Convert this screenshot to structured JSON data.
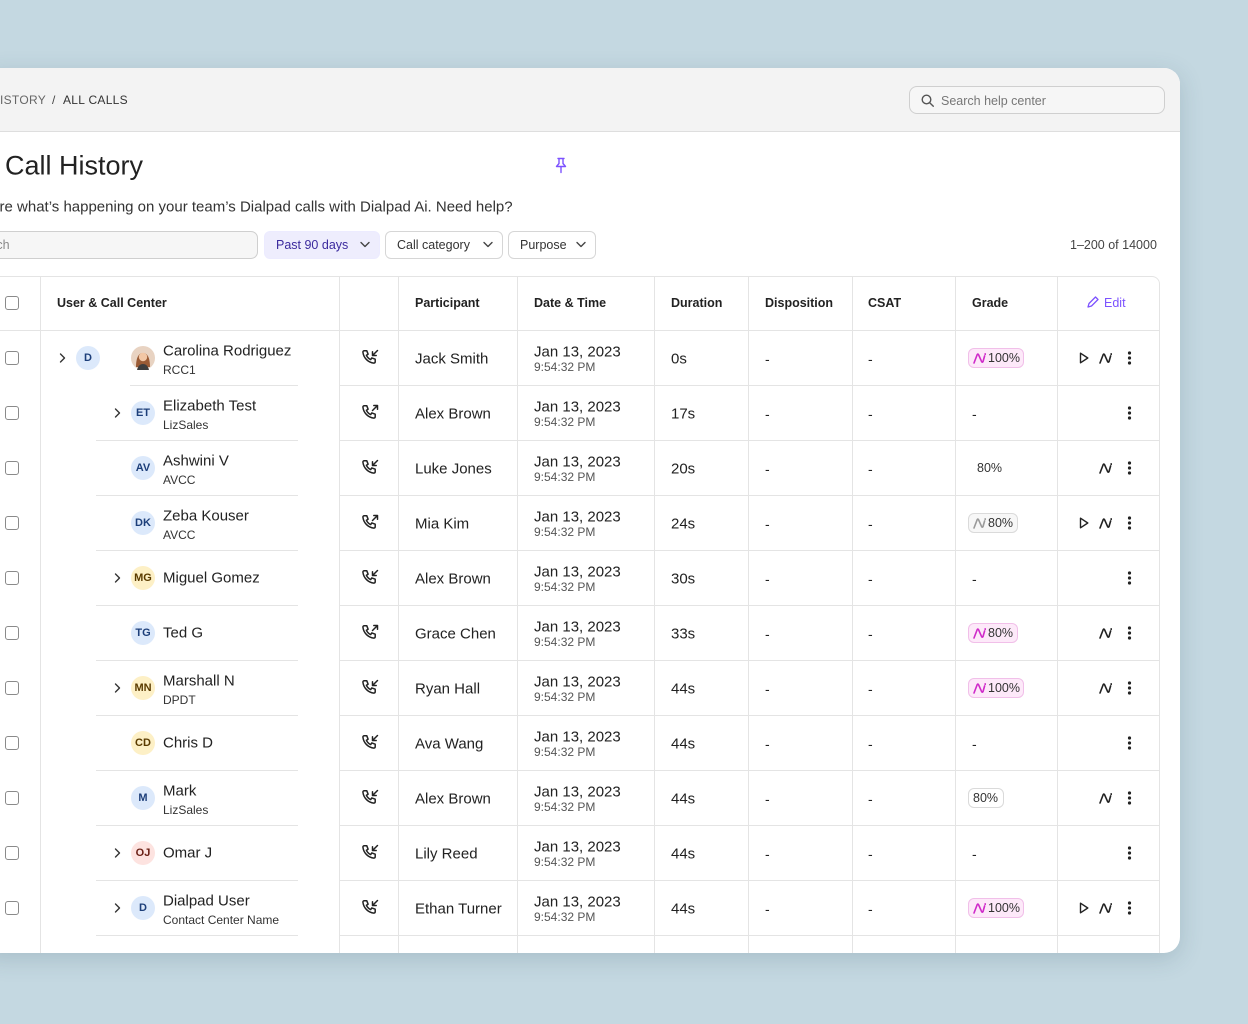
{
  "header": {
    "breadcrumb": [
      "HISTORY",
      "ALL CALLS"
    ],
    "breadcrumb_separator": "/",
    "help_search_placeholder": "Search help center"
  },
  "page": {
    "title": "Call History",
    "description": "Explore what’s happening on your team’s Dialpad calls with Dialpad Ai. Need help?",
    "search_placeholder": "Search",
    "filters": [
      {
        "label": "Past 90 days",
        "active": true
      },
      {
        "label": "Call category",
        "active": false
      },
      {
        "label": "Purpose",
        "active": false
      }
    ],
    "pagination": "1–200 of 14000"
  },
  "table": {
    "columns": [
      "User & Call Center",
      "Participant",
      "Date & Time",
      "Duration",
      "Disposition",
      "CSAT",
      "Grade"
    ],
    "edit_label": "Edit",
    "rows": [
      {
        "group_initials": "D",
        "photo": true,
        "name": "Carolina Rodriguez",
        "team": "RCC1",
        "expand": true,
        "direction": "in",
        "participant": "Jack Smith",
        "date": "Jan 13, 2023",
        "time": "9:54:32 PM",
        "duration": "0s",
        "disposition": "-",
        "csat": "-",
        "grade": "100%",
        "grade_style": "ai",
        "actions": [
          "play",
          "ai",
          "more"
        ]
      },
      {
        "initials": "ET",
        "tone": "blue",
        "name": "Elizabeth Test",
        "team": "LizSales",
        "expand": true,
        "direction": "out",
        "participant": "Alex Brown",
        "date": "Jan 13, 2023",
        "time": "9:54:32 PM",
        "duration": "17s",
        "disposition": "-",
        "csat": "-",
        "grade": "-",
        "grade_style": "text",
        "actions": [
          "more"
        ]
      },
      {
        "initials": "AV",
        "tone": "blue",
        "name": "Ashwini V",
        "team": "AVCC",
        "expand": false,
        "direction": "in",
        "participant": "Luke Jones",
        "date": "Jan 13, 2023",
        "time": "9:54:32 PM",
        "duration": "20s",
        "disposition": "-",
        "csat": "-",
        "grade": "80%",
        "grade_style": "text",
        "actions": [
          "ai",
          "more"
        ]
      },
      {
        "initials": "DK",
        "tone": "blue",
        "name": "Zeba Kouser",
        "team": "AVCC",
        "expand": false,
        "direction": "out",
        "participant": "Mia Kim",
        "date": "Jan 13, 2023",
        "time": "9:54:32 PM",
        "duration": "24s",
        "disposition": "-",
        "csat": "-",
        "grade": "80%",
        "grade_style": "ai-muted",
        "actions": [
          "play",
          "ai",
          "more"
        ]
      },
      {
        "initials": "MG",
        "tone": "yellow",
        "name": "Miguel Gomez",
        "expand": true,
        "direction": "in",
        "participant": "Alex Brown",
        "date": "Jan 13, 2023",
        "time": "9:54:32 PM",
        "duration": "30s",
        "disposition": "-",
        "csat": "-",
        "grade": "-",
        "grade_style": "text",
        "actions": [
          "more"
        ]
      },
      {
        "initials": "TG",
        "tone": "blue",
        "name": "Ted G",
        "expand": false,
        "direction": "out",
        "participant": "Grace Chen",
        "date": "Jan 13, 2023",
        "time": "9:54:32 PM",
        "duration": "33s",
        "disposition": "-",
        "csat": "-",
        "grade": "80%",
        "grade_style": "ai",
        "actions": [
          "ai",
          "more"
        ]
      },
      {
        "initials": "MN",
        "tone": "yellow",
        "name": "Marshall N",
        "team": "DPDT",
        "expand": true,
        "direction": "in",
        "participant": "Ryan Hall",
        "date": "Jan 13, 2023",
        "time": "9:54:32 PM",
        "duration": "44s",
        "disposition": "-",
        "csat": "-",
        "grade": "100%",
        "grade_style": "ai",
        "actions": [
          "ai",
          "more"
        ]
      },
      {
        "initials": "CD",
        "tone": "yellow",
        "name": "Chris D",
        "expand": false,
        "direction": "in",
        "participant": "Ava Wang",
        "date": "Jan 13, 2023",
        "time": "9:54:32 PM",
        "duration": "44s",
        "disposition": "-",
        "csat": "-",
        "grade": "-",
        "grade_style": "text",
        "actions": [
          "more"
        ]
      },
      {
        "initials": "M",
        "tone": "blue",
        "name": "Mark",
        "team": "LizSales",
        "expand": false,
        "direction": "in",
        "participant": "Alex Brown",
        "date": "Jan 13, 2023",
        "time": "9:54:32 PM",
        "duration": "44s",
        "disposition": "-",
        "csat": "-",
        "grade": "80%",
        "grade_style": "outline",
        "actions": [
          "ai",
          "more"
        ]
      },
      {
        "initials": "OJ",
        "tone": "pink",
        "name": "Omar J",
        "expand": true,
        "direction": "in",
        "participant": "Lily Reed",
        "date": "Jan 13, 2023",
        "time": "9:54:32 PM",
        "duration": "44s",
        "disposition": "-",
        "csat": "-",
        "grade": "-",
        "grade_style": "text",
        "actions": [
          "more"
        ]
      },
      {
        "initials": "D",
        "tone": "blue",
        "name": "Dialpad User",
        "team": "Contact Center Name",
        "expand": true,
        "direction": "in",
        "participant": "Ethan Turner",
        "date": "Jan 13, 2023",
        "time": "9:54:32 PM",
        "duration": "44s",
        "disposition": "-",
        "csat": "-",
        "grade": "100%",
        "grade_style": "ai",
        "actions": [
          "play",
          "ai",
          "more"
        ]
      }
    ]
  }
}
